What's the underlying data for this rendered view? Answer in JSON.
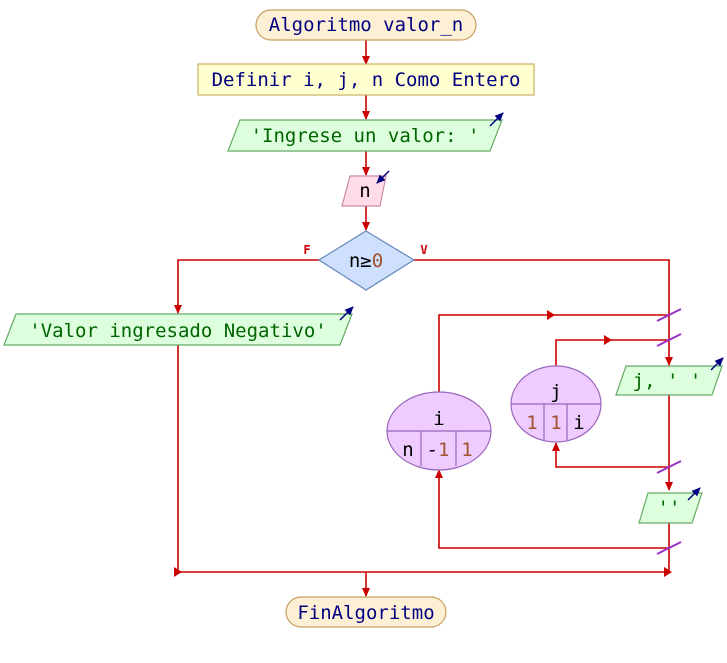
{
  "diagram": {
    "start_label": "Algoritmo valor_n",
    "define_label": "Definir i, j, n Como Entero",
    "prompt_output": "'Ingrese un valor: '",
    "input_var": "n",
    "condition": {
      "left": "n≥",
      "right": "0"
    },
    "false_label": "F",
    "true_label": "V",
    "negative_output": "'Valor ingresado Negativo'",
    "loop_i": {
      "var": "i",
      "start": "n",
      "step_sign": "-",
      "step": "1",
      "end": "1"
    },
    "loop_j": {
      "var": "j",
      "start": "1",
      "step": "1",
      "end": "i"
    },
    "inner_output": "j, ' '",
    "newline_output": "''",
    "end_label": "FinAlgoritmo"
  },
  "colors": {
    "flow_line": "#cc0000",
    "keyword_text": "#000080",
    "string_text": "#006400",
    "number_text": "#a0522d",
    "terminal_fill": "#fdf0d5",
    "process_fill": "#ffffd0",
    "output_fill": "#ddffdd",
    "input_fill": "#ffdce8",
    "decision_fill": "#cfe0ff",
    "loop_fill": "#eeccff",
    "io_arrow": "#000080",
    "loop_mark": "#9932cc"
  }
}
